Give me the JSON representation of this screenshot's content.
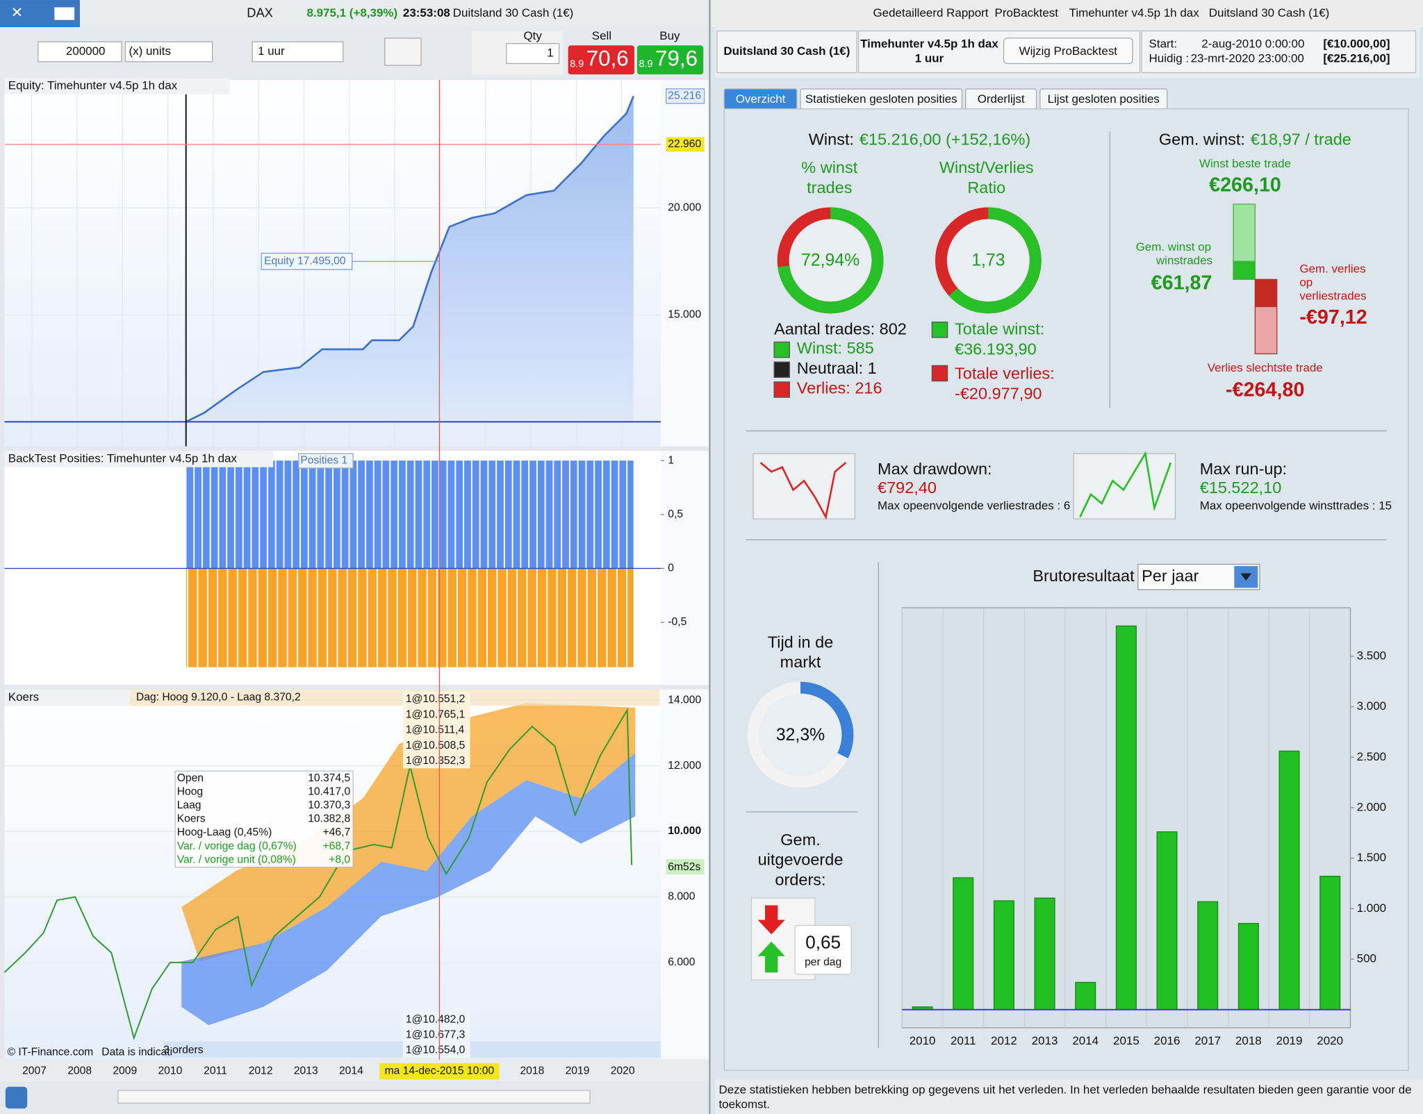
{
  "left_toolbar": {
    "instrument": "DAX",
    "quote": "8.975,1 (+8,39%)",
    "time": "23:53:08",
    "market": "Duitsland 30 Cash (1€)"
  },
  "order_bar": {
    "amount": "200000",
    "units": "(x) units",
    "timeframe": "1 uur",
    "qty_label": "Qty",
    "qty": "1",
    "sell_label": "Sell",
    "buy_label": "Buy",
    "sell_prefix": "8.9",
    "sell_price": "70,6",
    "buy_prefix": "8.9",
    "buy_price": "79,6"
  },
  "equity_chart": {
    "type": "line",
    "title": "Equity: Timehunter v4.5p 1h dax",
    "color": "#3a6fd0",
    "x": [
      2010.35,
      2010.75,
      2011.45,
      2012.06,
      2012.86,
      2013.36,
      2014.26,
      2014.46,
      2015.06,
      2015.37,
      2015.77,
      2016.17,
      2016.67,
      2017.17,
      2017.87,
      2018.48,
      2019.08,
      2019.58,
      2020.08,
      2020.24
    ],
    "values": [
      10000,
      10420,
      11480,
      12330,
      12540,
      13390,
      13390,
      13810,
      13810,
      14450,
      16990,
      19110,
      19530,
      19740,
      20590,
      20800,
      22070,
      23340,
      24400,
      25216
    ],
    "xlim": [
      2006.34,
      2020.84
    ],
    "ylim": [
      8856,
      25975
    ],
    "yticks": [
      {
        "value": 15000,
        "label": "15.000"
      },
      {
        "value": 20000,
        "label": "20.000"
      }
    ],
    "last_value": {
      "value": 25216,
      "label": "25.216"
    },
    "marker_value": {
      "value": 22960,
      "label": "22.960"
    },
    "crosshair_value": {
      "value": 17495,
      "label": "Equity 17.495,00"
    }
  },
  "positions_chart": {
    "title": "BackTest Posities: Timehunter v4.5p 1h dax",
    "label": "Posities 1",
    "ylim": [
      -1.08,
      1.09
    ],
    "yticks": [
      1,
      {
        "value": 0.5,
        "label": "0,5"
      },
      0,
      {
        "value": -0.5,
        "label": "-0,5"
      }
    ]
  },
  "price_chart": {
    "type": "line",
    "title": "Koers",
    "info": "Dag: Hoog 9.120,0 - Laag 8.370,2",
    "color": "#2f9a2f",
    "x": [
      2006.34,
      2006.8,
      2007.2,
      2007.5,
      2007.9,
      2008.3,
      2008.7,
      2009.2,
      2009.6,
      2010.0,
      2010.5,
      2011.0,
      2011.5,
      2011.8,
      2012.3,
      2012.8,
      2013.3,
      2013.9,
      2014.5,
      2014.9,
      2015.3,
      2015.7,
      2016.1,
      2016.6,
      2017.0,
      2017.5,
      2018.0,
      2018.5,
      2018.95,
      2019.5,
      2020.1,
      2020.2
    ],
    "values": [
      5700,
      6300,
      6900,
      7900,
      8000,
      6800,
      6300,
      3700,
      5200,
      6000,
      6000,
      7000,
      7400,
      5300,
      6800,
      7400,
      8000,
      9400,
      9600,
      9500,
      12000,
      9800,
      8700,
      9800,
      11500,
      12500,
      13200,
      12600,
      10500,
      12300,
      13700,
      8975
    ],
    "xlim": [
      2006.34,
      2020.84
    ],
    "ylim": [
      3040,
      14330
    ],
    "yticks": [
      {
        "value": 6000,
        "label": "6.000"
      },
      {
        "value": 8000,
        "label": "8.000"
      },
      {
        "value": 10000,
        "label": "10.000"
      },
      {
        "value": 12000,
        "label": "12.000"
      },
      {
        "value": 14000,
        "label": "14.000"
      }
    ],
    "xticks": [
      2007,
      2008,
      2009,
      2010,
      2011,
      2012,
      2013,
      2014,
      2018,
      2019,
      2020
    ],
    "crosshair": {
      "value": 2015.95,
      "label": "ma 14-dec-2015 10:00"
    },
    "timer": "6m52s",
    "orders_top": [
      "1@10.551,2",
      "1@10.765,1",
      "1@10.511,4",
      "1@10.508,5",
      "1@10.352,3"
    ],
    "orders_bottom": [
      "1@10.482,0",
      "1@10.677,3",
      "1@10.554,0"
    ],
    "orders_count": "3 orders",
    "tooltip": [
      [
        "Open",
        "10.374,5"
      ],
      [
        "Hoog",
        "10.417,0"
      ],
      [
        "Laag",
        "10.370,3"
      ],
      [
        "Koers",
        "10.382,8"
      ],
      [
        "Hoog-Laag (0,45%)",
        "+46,7"
      ],
      [
        "Var. / vorige dag (0,67%)",
        "+68,7"
      ],
      [
        "Var. / vorige unit (0,08%)",
        "+8,0"
      ]
    ],
    "copyright": "© IT-Finance.com",
    "disclaimer": "Data is indicati"
  },
  "report_titlebar": [
    "Gedetailleerd Rapport",
    "ProBacktest",
    "Timehunter v4.5p 1h dax",
    "Duitsland 30 Cash (1€)"
  ],
  "report_info": {
    "market": "Duitsland 30 Cash (1€)",
    "system": "Timehunter v4.5p 1h dax",
    "timeframe": "1 uur",
    "button": "Wijzig ProBacktest",
    "start_label": "Start:",
    "start_date": "2-aug-2010 0:00:00",
    "start_capital": "[€10.000,00]",
    "current_label": "Huidig :",
    "current_date": "23-mrt-2020 23:00:00",
    "current_capital": "[€25.216,00]"
  },
  "tabs": [
    "Overzicht",
    "Statistieken gesloten posities",
    "Orderlijst",
    "Lijst gesloten posities"
  ],
  "summary": {
    "profit_label": "Winst:",
    "profit": "€15.216,00 (+152,16%)",
    "win_pct_title": [
      "% winst",
      "trades"
    ],
    "ratio_title": [
      "Winst/Verlies",
      "Ratio"
    ],
    "win_pct": {
      "value": 72.94,
      "label": "72,94%"
    },
    "ratio": "1,73",
    "trades": "Aantal trades: 802",
    "wins": "Winst: 585",
    "neutral": "Neutraal: 1",
    "losses": "Verlies: 216",
    "total_win_label": "Totale winst:",
    "total_win": {
      "value": 36193.9,
      "label": "€36.193,90"
    },
    "total_loss_label": "Totale verlies:",
    "total_loss": {
      "value": -20977.9,
      "label": "-€20.977,90"
    }
  },
  "trade_stats": {
    "avg_label": "Gem. winst:",
    "avg": "€18,97 / trade",
    "best_label": "Winst beste trade",
    "best": "€266,10",
    "avg_win_label": [
      "Gem. winst op",
      "winstrades"
    ],
    "avg_win": "€61,87",
    "avg_loss_label": [
      "Gem. verlies",
      "op",
      "verliestrades"
    ],
    "avg_loss": "-€97,12",
    "worst_label": "Verlies slechtste trade",
    "worst": "-€264,80"
  },
  "drawdown": {
    "label": "Max drawdown:",
    "value": "€792,40",
    "detail": "Max opeenvolgende verliestrades : 6"
  },
  "runup": {
    "label": "Max run-up:",
    "value": "€15.522,10",
    "detail": "Max opeenvolgende winsttrades : 15"
  },
  "market_time": {
    "title": [
      "Tijd in de",
      "markt"
    ],
    "value": {
      "value": 32.3,
      "label": "32,3%"
    }
  },
  "orders_per_day": {
    "title": [
      "Gem.",
      "uitgevoerde",
      "orders:"
    ],
    "value": "0,65",
    "unit": "per dag"
  },
  "gross_chart": {
    "type": "bar",
    "title": "Brutoresultaat",
    "period": "Per jaar",
    "color": "#22c022",
    "categories": [
      "2010",
      "2011",
      "2012",
      "2013",
      "2014",
      "2015",
      "2016",
      "2017",
      "2018",
      "2019",
      "2020"
    ],
    "values": [
      27,
      1306,
      1078,
      1105,
      270,
      3800,
      1761,
      1069,
      854,
      2561,
      1321
    ],
    "ylim": [
      -180,
      3980
    ],
    "yticks": [
      500,
      {
        "value": 1000,
        "label": "1.000"
      },
      {
        "value": 1500,
        "label": "1.500"
      },
      {
        "value": 2000,
        "label": "2.000"
      },
      {
        "value": 2500,
        "label": "2.500"
      },
      {
        "value": 3000,
        "label": "3.000"
      },
      {
        "value": 3500,
        "label": "3.500"
      }
    ]
  },
  "footer": [
    "Deze statistieken hebben betrekking op gegevens uit het verleden. In het verleden behaalde resultaten bieden geen garantie voor de",
    "toekomst."
  ]
}
